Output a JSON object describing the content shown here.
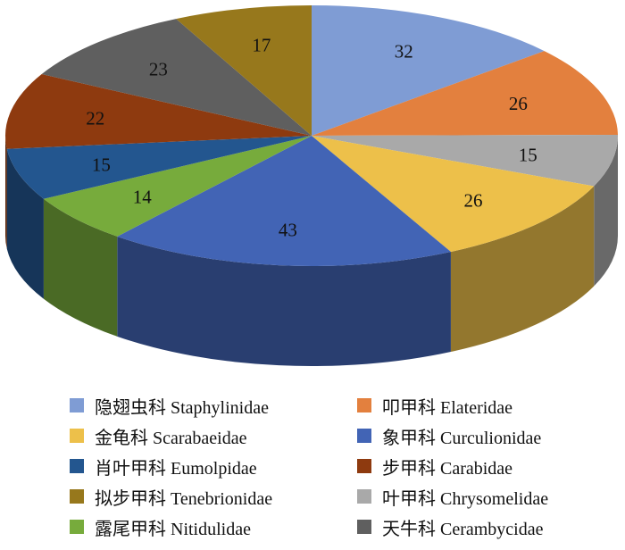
{
  "chart_data": {
    "type": "pie",
    "style": "3d",
    "start_angle": "12 o'clock",
    "direction": "clockwise",
    "slices": [
      {
        "label": "隐翅虫科 Staphylinidae",
        "value": 32,
        "color": "#7F9CD4"
      },
      {
        "label": "叩甲科 Elateridae",
        "value": 26,
        "color": "#E3803E"
      },
      {
        "label": "叶甲科 Chrysomelidae",
        "value": 15,
        "color": "#A9A9A9"
      },
      {
        "label": "金龟科 Scarabaeidae",
        "value": 26,
        "color": "#EDC04A"
      },
      {
        "label": "象甲科 Curculionidae",
        "value": 43,
        "color": "#4264B5"
      },
      {
        "label": "露尾甲科 Nitidulidae",
        "value": 14,
        "color": "#77AB3C"
      },
      {
        "label": "肖叶甲科 Eumolpidae",
        "value": 15,
        "color": "#23568F"
      },
      {
        "label": "步甲科 Carabidae",
        "value": 22,
        "color": "#8E3A0F"
      },
      {
        "label": "天牛科 Cerambycidae",
        "value": 23,
        "color": "#5F5F5F"
      },
      {
        "label": "拟步甲科 Tenebrionidae",
        "value": 17,
        "color": "#97781C"
      }
    ],
    "legend": {
      "placement": "bottom",
      "order": [
        "隐翅虫科 Staphylinidae",
        "叩甲科 Elateridae",
        "金龟科 Scarabaeidae",
        "象甲科 Curculionidae",
        "肖叶甲科 Eumolpidae",
        "步甲科 Carabidae",
        "拟步甲科 Tenebrionidae",
        "叶甲科 Chrysomelidae",
        "露尾甲科 Nitidulidae",
        "天牛科 Cerambycidae"
      ]
    }
  }
}
